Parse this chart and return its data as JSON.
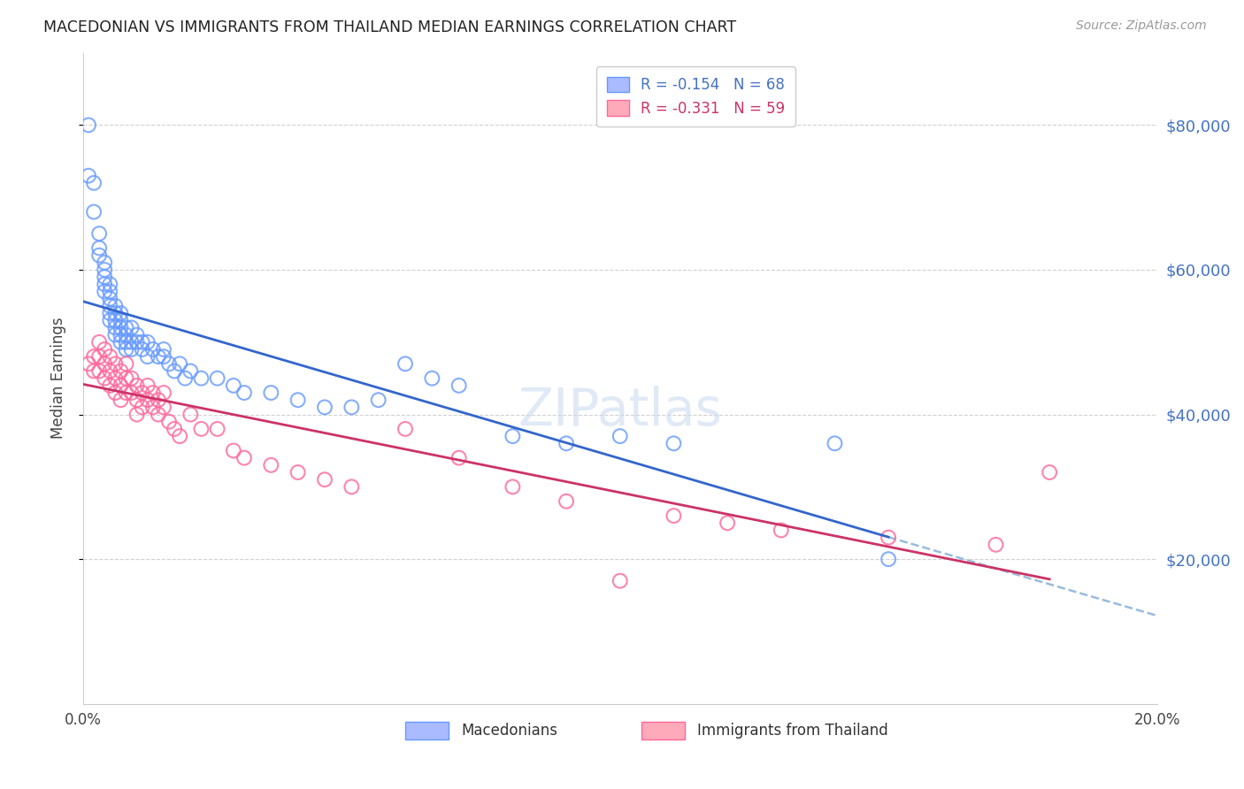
{
  "title": "MACEDONIAN VS IMMIGRANTS FROM THAILAND MEDIAN EARNINGS CORRELATION CHART",
  "source": "Source: ZipAtlas.com",
  "ylabel": "Median Earnings",
  "right_yticks": [
    "$80,000",
    "$60,000",
    "$40,000",
    "$20,000"
  ],
  "right_ytick_vals": [
    80000,
    60000,
    40000,
    20000
  ],
  "ylim": [
    0,
    90000
  ],
  "xlim": [
    0.0,
    0.2
  ],
  "legend_mac": "R = -0.154   N = 68",
  "legend_thai": "R = -0.331   N = 59",
  "legend_label_mac": "Macedonians",
  "legend_label_thai": "Immigrants from Thailand",
  "mac_color": "#6699ff",
  "thai_color": "#ff6699",
  "mac_trend_color": "#3366cc",
  "thai_trend_color": "#cc3366",
  "dashed_line_color": "#99bbdd",
  "watermark": "ZIPatlas",
  "background_color": "#ffffff",
  "mac_x": [
    0.001,
    0.001,
    0.002,
    0.002,
    0.003,
    0.003,
    0.003,
    0.004,
    0.004,
    0.004,
    0.004,
    0.004,
    0.005,
    0.005,
    0.005,
    0.005,
    0.005,
    0.005,
    0.006,
    0.006,
    0.006,
    0.006,
    0.006,
    0.007,
    0.007,
    0.007,
    0.007,
    0.007,
    0.008,
    0.008,
    0.008,
    0.008,
    0.009,
    0.009,
    0.009,
    0.01,
    0.01,
    0.011,
    0.011,
    0.012,
    0.012,
    0.013,
    0.014,
    0.015,
    0.015,
    0.016,
    0.017,
    0.018,
    0.019,
    0.02,
    0.022,
    0.025,
    0.028,
    0.03,
    0.035,
    0.04,
    0.045,
    0.05,
    0.055,
    0.06,
    0.065,
    0.07,
    0.08,
    0.09,
    0.1,
    0.11,
    0.14,
    0.15
  ],
  "mac_y": [
    80000,
    73000,
    72000,
    68000,
    65000,
    63000,
    62000,
    61000,
    60000,
    59000,
    58000,
    57000,
    58000,
    57000,
    56000,
    55000,
    54000,
    53000,
    55000,
    54000,
    53000,
    52000,
    51000,
    54000,
    53000,
    52000,
    51000,
    50000,
    52000,
    51000,
    50000,
    49000,
    52000,
    50000,
    49000,
    51000,
    50000,
    50000,
    49000,
    50000,
    48000,
    49000,
    48000,
    49000,
    48000,
    47000,
    46000,
    47000,
    45000,
    46000,
    45000,
    45000,
    44000,
    43000,
    43000,
    42000,
    41000,
    41000,
    42000,
    47000,
    45000,
    44000,
    37000,
    36000,
    37000,
    36000,
    36000,
    20000
  ],
  "thai_x": [
    0.001,
    0.002,
    0.002,
    0.003,
    0.003,
    0.003,
    0.004,
    0.004,
    0.004,
    0.005,
    0.005,
    0.005,
    0.006,
    0.006,
    0.006,
    0.007,
    0.007,
    0.007,
    0.008,
    0.008,
    0.008,
    0.009,
    0.009,
    0.01,
    0.01,
    0.01,
    0.011,
    0.011,
    0.012,
    0.012,
    0.013,
    0.013,
    0.014,
    0.014,
    0.015,
    0.015,
    0.016,
    0.017,
    0.018,
    0.02,
    0.022,
    0.025,
    0.028,
    0.03,
    0.035,
    0.04,
    0.045,
    0.05,
    0.06,
    0.07,
    0.08,
    0.09,
    0.1,
    0.11,
    0.12,
    0.13,
    0.15,
    0.17,
    0.18
  ],
  "thai_y": [
    47000,
    48000,
    46000,
    50000,
    48000,
    46000,
    49000,
    47000,
    45000,
    48000,
    46000,
    44000,
    47000,
    45000,
    43000,
    46000,
    44000,
    42000,
    47000,
    45000,
    43000,
    45000,
    43000,
    44000,
    42000,
    40000,
    43000,
    41000,
    44000,
    42000,
    43000,
    41000,
    42000,
    40000,
    43000,
    41000,
    39000,
    38000,
    37000,
    40000,
    38000,
    38000,
    35000,
    34000,
    33000,
    32000,
    31000,
    30000,
    38000,
    34000,
    30000,
    28000,
    17000,
    26000,
    25000,
    24000,
    23000,
    22000,
    32000
  ]
}
